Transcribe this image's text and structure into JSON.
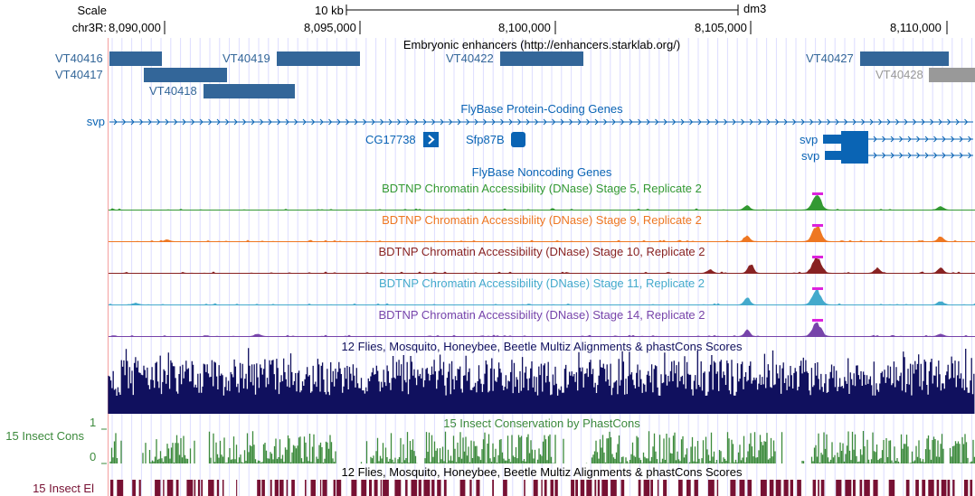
{
  "ruler": {
    "scale_label": "Scale",
    "scale_bar_label": "10 kb",
    "assembly": "dm3",
    "chrom_label": "chr3R:",
    "ticks": [
      "8,090,000",
      "8,095,000",
      "8,100,000",
      "8,105,000",
      "8,110,000"
    ]
  },
  "enhancers": {
    "title": "Embryonic enhancers (http://enhancers.starklab.org/)",
    "items": [
      "VT40416",
      "VT40417",
      "VT40418",
      "VT40419",
      "VT40422",
      "VT40427",
      "VT40428"
    ],
    "color": "#336699",
    "gray_color": "#999999"
  },
  "protein_genes": {
    "title": "FlyBase Protein-Coding Genes",
    "genes": [
      "svp",
      "CG17738",
      "Sfp87B",
      "svp",
      "svp"
    ],
    "color": "#0a64b4"
  },
  "noncoding": {
    "title": "FlyBase Noncoding Genes"
  },
  "dnase": [
    {
      "title": "BDTNP Chromatin Accessibility (DNase) Stage 5, Replicate 2",
      "color": "#339933"
    },
    {
      "title": "BDTNP Chromatin Accessibility (DNase) Stage 9, Replicate 2",
      "color": "#ee7722"
    },
    {
      "title": "BDTNP Chromatin Accessibility (DNase) Stage 10, Replicate 2",
      "color": "#882222"
    },
    {
      "title": "BDTNP Chromatin Accessibility (DNase) Stage 11, Replicate 2",
      "color": "#44aacc"
    },
    {
      "title": "BDTNP Chromatin Accessibility (DNase) Stage 14, Replicate 2",
      "color": "#7744aa"
    }
  ],
  "multiz": {
    "title": "12 Flies, Mosquito, Honeybee, Beetle Multiz Alignments & phastCons Scores",
    "color": "#10105e"
  },
  "phastcons": {
    "title": "15 Insect Conservation by PhastCons",
    "side_label": "15 Insect Cons",
    "axis_max": "1",
    "axis_min": "0",
    "color": "#3c8a3c"
  },
  "elements": {
    "title": "12 Flies, Mosquito, Honeybee, Beetle Multiz Alignments & phastCons Scores",
    "side_label": "15 Insect El",
    "color": "#771133"
  }
}
